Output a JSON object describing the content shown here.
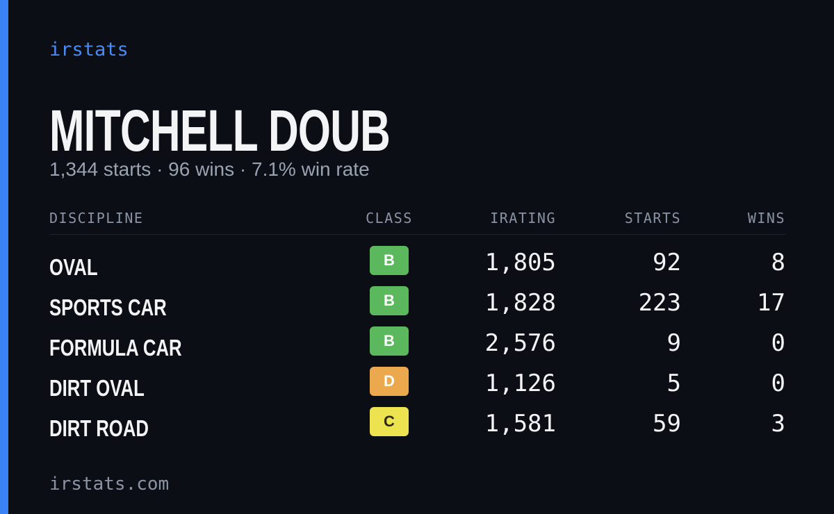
{
  "brand": "irstats",
  "name": "MITCHELL DOUB",
  "summary": "1,344 starts · 96 wins · 7.1% win rate",
  "table": {
    "columns": [
      "DISCIPLINE",
      "CLASS",
      "IRATING",
      "STARTS",
      "WINS"
    ],
    "rows": [
      [
        "OVAL",
        "B",
        "1,805",
        "92",
        "8"
      ],
      [
        "SPORTS CAR",
        "B",
        "1,828",
        "223",
        "17"
      ],
      [
        "FORMULA CAR",
        "B",
        "2,576",
        "9",
        "0"
      ],
      [
        "DIRT OVAL",
        "D",
        "1,126",
        "5",
        "0"
      ],
      [
        "DIRT ROAD",
        "C",
        "1,581",
        "59",
        "3"
      ]
    ]
  },
  "class_colors": {
    "B": "#5cb85c",
    "C": "#ede24f",
    "D": "#eba84c"
  },
  "footer": "irstats.com"
}
